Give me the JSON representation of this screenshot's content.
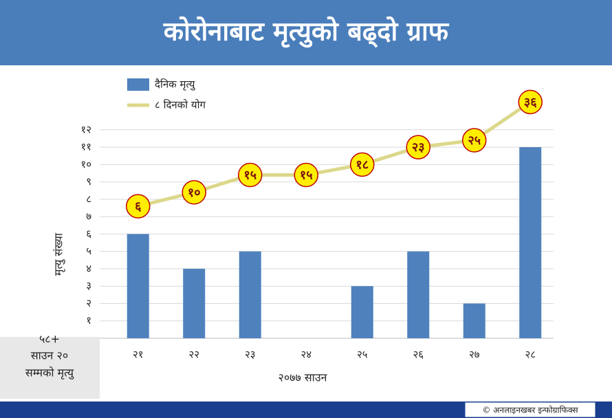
{
  "chart_data": {
    "type": "bar",
    "title": "कोरोनाबाट मृत्युको बढ्दो ग्राफ",
    "x_label": "२०७७ साउन",
    "y_label": "मृत्यु संख्या",
    "side_note": [
      "५८+",
      "साउन २०",
      "सम्मको मृत्यु"
    ],
    "credit": "© अनलाइनखबर इन्फोग्राफिक्स",
    "categories": [
      "२१",
      "२२",
      "२३",
      "२४",
      "२५",
      "२६",
      "२७",
      "२८"
    ],
    "series": [
      {
        "name": "दैनिक मृत्यु",
        "color": "#4f81bd",
        "type": "bar",
        "values": [
          6,
          4,
          5,
          0,
          3,
          5,
          2,
          11
        ]
      },
      {
        "name": "८ दिनको योग",
        "color": "#dcd88a",
        "type": "line",
        "axis": "y2",
        "values": [
          6,
          10,
          15,
          15,
          18,
          23,
          25,
          36
        ],
        "value_labels": [
          "६",
          "१०",
          "१५",
          "१५",
          "१८",
          "२३",
          "२५",
          "३६"
        ]
      }
    ],
    "ylim": [
      0,
      15
    ],
    "yticks": [
      {
        "value": 1,
        "label": "१"
      },
      {
        "value": 2,
        "label": "२"
      },
      {
        "value": 3,
        "label": "३"
      },
      {
        "value": 4,
        "label": "४"
      },
      {
        "value": 5,
        "label": "५"
      },
      {
        "value": 6,
        "label": "६"
      },
      {
        "value": 7,
        "label": "७"
      },
      {
        "value": 8,
        "label": "८"
      },
      {
        "value": 9,
        "label": "९"
      },
      {
        "value": 10,
        "label": "१०"
      },
      {
        "value": 11,
        "label": "११"
      },
      {
        "value": 12,
        "label": "१२"
      }
    ],
    "y2lim": [
      -32,
      43
    ],
    "grid": true,
    "legend": "top-left"
  }
}
